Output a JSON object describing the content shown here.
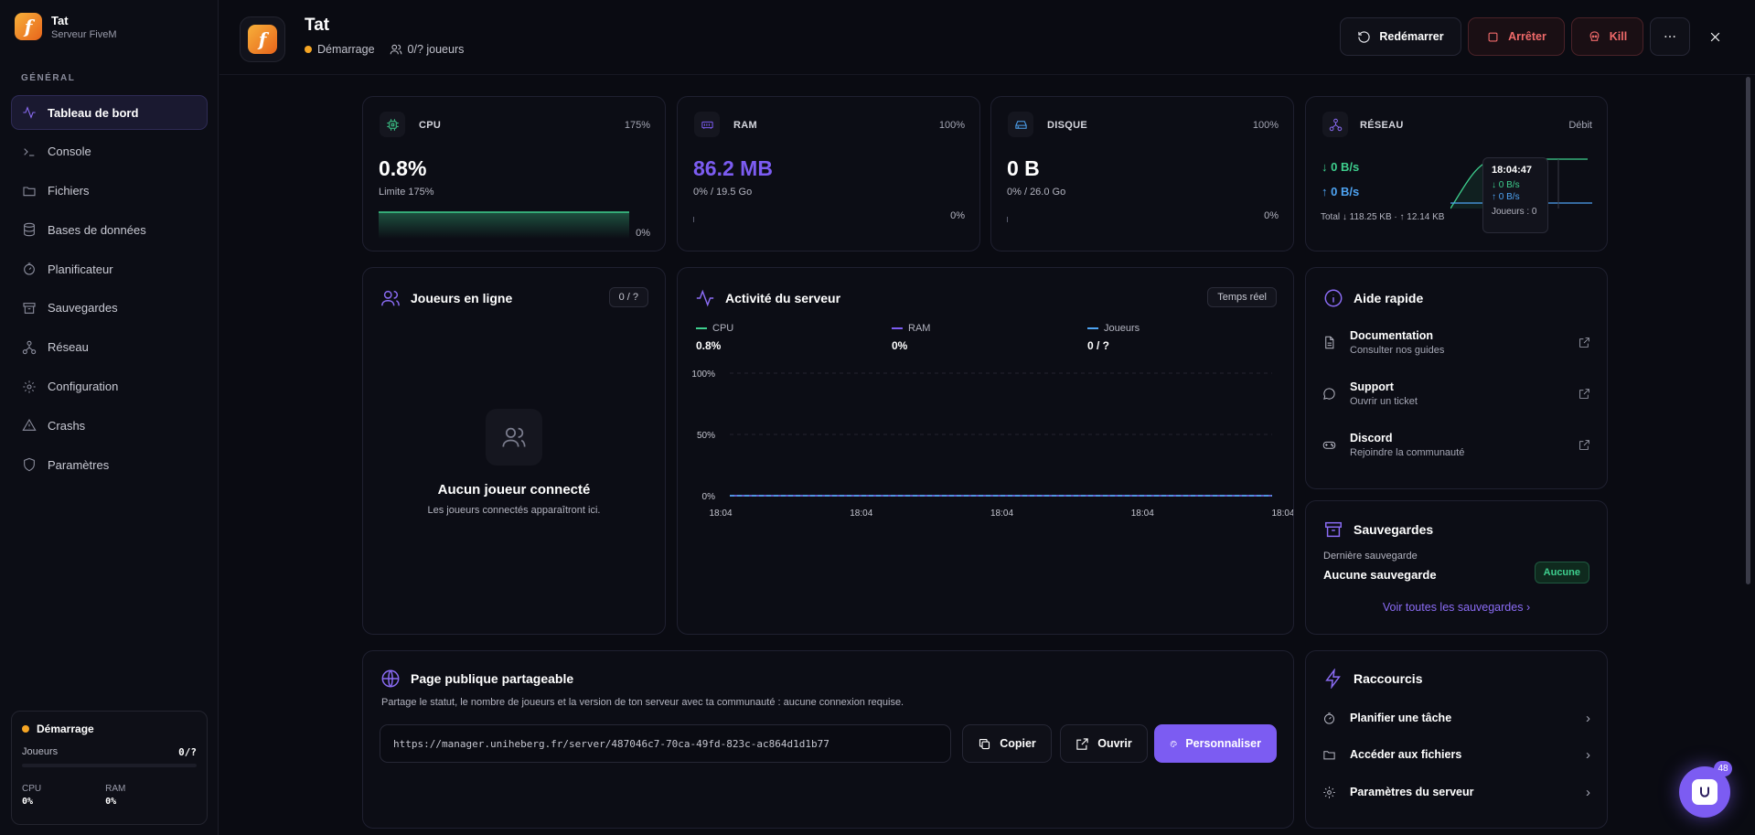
{
  "sidebar": {
    "brand_name": "Tat",
    "brand_sub": "Serveur FiveM",
    "section_label": "GÉNÉRAL",
    "items": [
      {
        "label": "Tableau de bord",
        "icon": "activity-icon"
      },
      {
        "label": "Console",
        "icon": "terminal-icon"
      },
      {
        "label": "Fichiers",
        "icon": "folder-icon"
      },
      {
        "label": "Bases de données",
        "icon": "database-icon"
      },
      {
        "label": "Planificateur",
        "icon": "timer-icon"
      },
      {
        "label": "Sauvegardes",
        "icon": "archive-icon"
      },
      {
        "label": "Réseau",
        "icon": "network-icon"
      },
      {
        "label": "Configuration",
        "icon": "gear-icon"
      },
      {
        "label": "Crashs",
        "icon": "warning-icon"
      },
      {
        "label": "Paramètres",
        "icon": "shield-icon"
      }
    ],
    "status": {
      "title": "Démarrage",
      "players_label": "Joueurs",
      "players_value": "0/?",
      "cpu_label": "CPU",
      "cpu_value": "0%",
      "ram_label": "RAM",
      "ram_value": "0%"
    }
  },
  "header": {
    "title": "Tat",
    "status": "Démarrage",
    "players": "0/? joueurs",
    "restart_label": "Redémarrer",
    "stop_label": "Arrêter",
    "kill_label": "Kill"
  },
  "stats": {
    "cpu": {
      "label": "CPU",
      "limit": "175%",
      "value": "0.8%",
      "sub": "Limite 175%",
      "pct": "0%",
      "fill": 0
    },
    "ram": {
      "label": "RAM",
      "limit": "100%",
      "value": "86.2 MB",
      "sub": "0% / 19.5 Go",
      "pct": "0%",
      "fill": 0
    },
    "disk": {
      "label": "DISQUE",
      "limit": "100%",
      "value": "0 B",
      "sub": "0% / 26.0 Go",
      "pct": "0%",
      "fill": 0
    },
    "net": {
      "label": "RÉSEAU",
      "right": "Débit",
      "down": "0 B/s",
      "up": "0 B/s",
      "total": "Total ↓ 118.25 KB · ↑ 12.14 KB",
      "tooltip": {
        "time": "18:04:47",
        "down": "↓ 0 B/s",
        "up": "↑ 0 B/s",
        "players": "Joueurs : 0"
      }
    }
  },
  "players": {
    "title": "Joueurs en ligne",
    "count": "0 / ?",
    "empty_title": "Aucun joueur connecté",
    "empty_sub": "Les joueurs connectés apparaîtront ici."
  },
  "activity": {
    "title": "Activité du serveur",
    "badge": "Temps réel",
    "legend": [
      {
        "name": "CPU",
        "value": "0.8%",
        "color": "#3ecf8e"
      },
      {
        "name": "RAM",
        "value": "0%",
        "color": "#7c5cf2"
      },
      {
        "name": "Joueurs",
        "value": "0 / ?",
        "color": "#4ea3f2"
      }
    ]
  },
  "chart_data": {
    "type": "line",
    "x": [
      "18:04",
      "18:04",
      "18:04",
      "18:04",
      "18:04"
    ],
    "series": [
      {
        "name": "CPU",
        "values": [
          0,
          0,
          0,
          0,
          0
        ]
      },
      {
        "name": "RAM",
        "values": [
          0,
          0,
          0,
          0,
          0
        ]
      },
      {
        "name": "Joueurs",
        "values": [
          0,
          0,
          0,
          0,
          0
        ]
      }
    ],
    "yticks": [
      "100%",
      "50%",
      "0%"
    ],
    "ylim": [
      0,
      100
    ],
    "grid": true
  },
  "help": {
    "title": "Aide rapide",
    "items": [
      {
        "title": "Documentation",
        "desc": "Consulter nos guides",
        "icon": "document-icon"
      },
      {
        "title": "Support",
        "desc": "Ouvrir un ticket",
        "icon": "chat-icon"
      },
      {
        "title": "Discord",
        "desc": "Rejoindre la communauté",
        "icon": "gamepad-icon"
      }
    ]
  },
  "backups": {
    "title": "Sauvegardes",
    "last_label": "Dernière sauvegarde",
    "last_value": "Aucune sauvegarde",
    "badge": "Aucune",
    "link": "Voir toutes les sauvegardes"
  },
  "public_page": {
    "title": "Page publique partageable",
    "desc": "Partage le statut, le nombre de joueurs et la version de ton serveur avec ta communauté : aucune connexion requise.",
    "url": "https://manager.uniheberg.fr/server/487046c7-70ca-49fd-823c-ac864d1d1b77",
    "copy_label": "Copier",
    "open_label": "Ouvrir",
    "customize_label": "Personnaliser"
  },
  "shortcuts": {
    "title": "Raccourcis",
    "items": [
      {
        "label": "Planifier une tâche",
        "icon": "timer-icon"
      },
      {
        "label": "Accéder aux fichiers",
        "icon": "folder-icon"
      },
      {
        "label": "Paramètres du serveur",
        "icon": "gear-icon"
      }
    ]
  },
  "widget_badge": "48",
  "colors": {
    "accent": "#7c5cf2",
    "cpu": "#3ecf8e",
    "danger": "#f06a6a",
    "status": "#f5a524"
  }
}
